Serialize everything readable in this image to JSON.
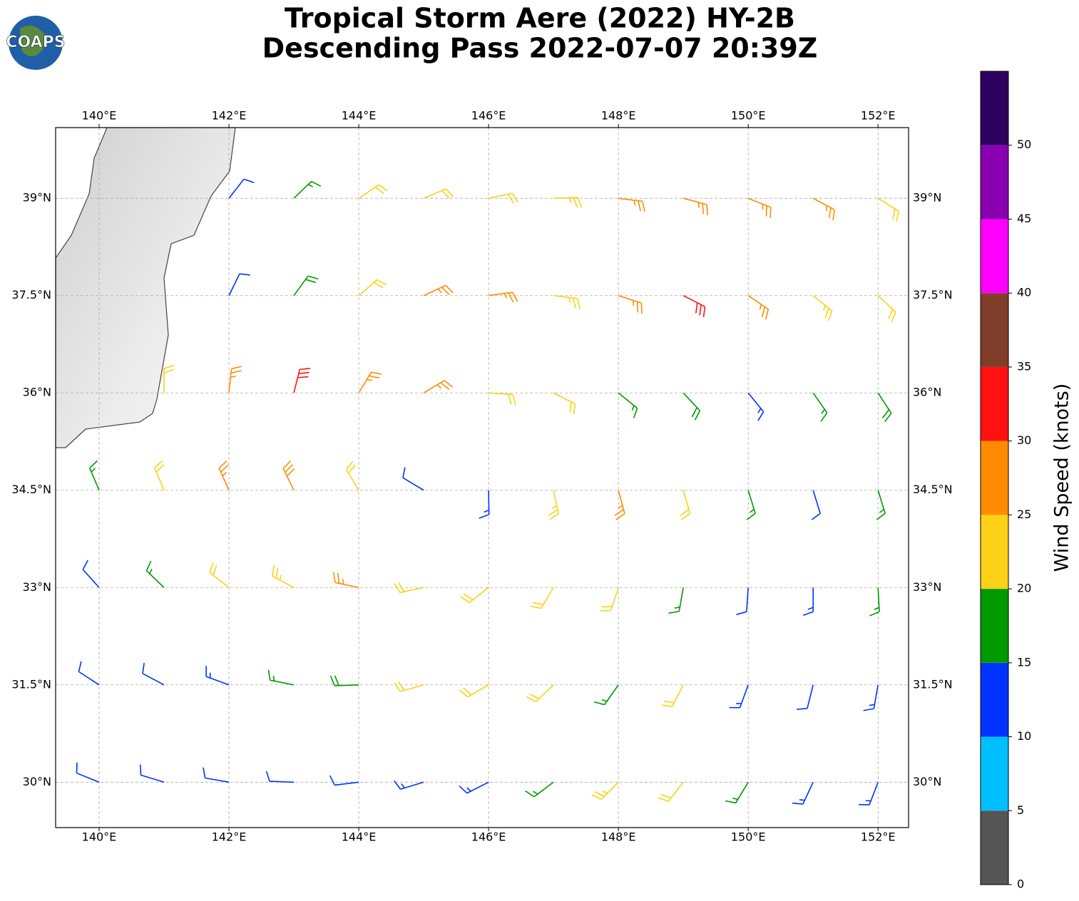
{
  "logo": "COAPS",
  "chart_data": {
    "type": "barbs",
    "title": "Tropical Storm Aere (2022) HY-2B",
    "subtitle": "Descending Pass 2022-07-07 20:39Z",
    "xlim": [
      139.33,
      152.47
    ],
    "ylim": [
      29.3,
      40.09
    ],
    "xticks": [
      {
        "value": 140,
        "label": "140°E"
      },
      {
        "value": 142,
        "label": "142°E"
      },
      {
        "value": 144,
        "label": "144°E"
      },
      {
        "value": 146,
        "label": "146°E"
      },
      {
        "value": 148,
        "label": "148°E"
      },
      {
        "value": 150,
        "label": "150°E"
      },
      {
        "value": 152,
        "label": "152°E"
      }
    ],
    "yticks": [
      {
        "value": 30,
        "label": "30°N"
      },
      {
        "value": 31.5,
        "label": "31.5°N"
      },
      {
        "value": 33,
        "label": "33°N"
      },
      {
        "value": 34.5,
        "label": "34.5°N"
      },
      {
        "value": 36,
        "label": "36°N"
      },
      {
        "value": 37.5,
        "label": "37.5°N"
      },
      {
        "value": 39,
        "label": "39°N"
      }
    ],
    "grid": true,
    "barbs": {
      "lon": [
        140,
        141,
        142,
        143,
        144,
        145,
        146,
        147,
        148,
        149,
        150,
        151,
        152
      ],
      "lat": [
        39,
        37.5,
        36,
        34.5,
        33,
        31.5,
        30
      ],
      "speed": [
        [
          null,
          null,
          12,
          17,
          22,
          22,
          22,
          24,
          27,
          27,
          27,
          25,
          22
        ],
        [
          null,
          null,
          12,
          18,
          22,
          27,
          27,
          24,
          25,
          30,
          27,
          24,
          22
        ],
        [
          null,
          22,
          26,
          30,
          27,
          27,
          22,
          20,
          17,
          18,
          14,
          17,
          18
        ],
        [
          17,
          22,
          27,
          28,
          22,
          12,
          14,
          23,
          25,
          22,
          15,
          12,
          17
        ],
        [
          12,
          17,
          22,
          24,
          26,
          22,
          22,
          22,
          20,
          15,
          12,
          14,
          17
        ],
        [
          12,
          12,
          14,
          17,
          18,
          22,
          22,
          20,
          17,
          20,
          14,
          12,
          14
        ],
        [
          12,
          12,
          12,
          12,
          12,
          14,
          14,
          17,
          24,
          20,
          17,
          14,
          14
        ]
      ],
      "direction": [
        [
          null,
          null,
          218,
          226,
          236,
          247,
          258,
          268,
          277,
          285,
          292,
          298,
          302
        ],
        [
          null,
          null,
          206,
          216,
          229,
          245,
          262,
          277,
          288,
          297,
          304,
          309,
          313
        ],
        [
          null,
          180,
          186,
          194,
          211,
          239,
          274,
          297,
          309,
          317,
          321,
          325,
          327
        ],
        [
          157,
          157,
          156,
          154,
          149,
          121,
          359,
          348,
          345,
          344,
          343,
          343,
          343
        ],
        [
          138,
          134,
          128,
          118,
          102,
          78,
          52,
          31,
          18,
          10,
          4,
          0,
          357
        ],
        [
          123,
          118,
          110,
          101,
          88,
          74,
          60,
          46,
          35,
          27,
          20,
          14,
          10
        ],
        [
          112,
          107,
          100,
          92,
          83,
          73,
          63,
          53,
          45,
          38,
          31,
          25,
          21
        ]
      ]
    },
    "colorbar": {
      "label": "Wind Speed (knots)",
      "lim": [
        0,
        55
      ],
      "bounds": [
        0,
        5,
        10,
        15,
        20,
        25,
        30,
        35,
        40,
        45,
        50,
        55
      ],
      "colors": [
        "#555555",
        "#00bfff",
        "#0033ff",
        "#009900",
        "#fcd116",
        "#ff8c00",
        "#ff1111",
        "#803d2a",
        "#ff00ff",
        "#8800b0",
        "#2e0060"
      ],
      "ticks": [
        0,
        5,
        10,
        15,
        20,
        25,
        30,
        35,
        40,
        45,
        50
      ]
    }
  }
}
